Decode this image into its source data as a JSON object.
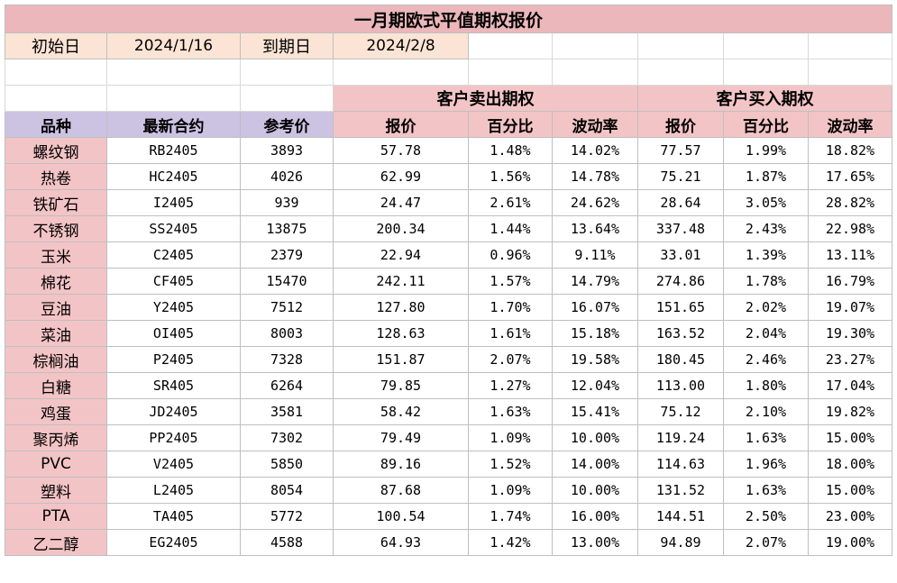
{
  "title": "一月期欧式平值期权报价",
  "info": {
    "start_label": "初始日",
    "start_value": "2024/1/16",
    "expiry_label": "到期日",
    "expiry_value": "2024/2/8"
  },
  "groups": {
    "sell": "客户卖出期权",
    "buy": "客户买入期权"
  },
  "columns": [
    "品种",
    "最新合约",
    "参考价",
    "报价",
    "百分比",
    "波动率",
    "报价",
    "百分比",
    "波动率"
  ],
  "rows": [
    [
      "螺纹钢",
      "RB2405",
      "3893",
      "57.78",
      "1.48%",
      "14.02%",
      "77.57",
      "1.99%",
      "18.82%"
    ],
    [
      "热卷",
      "HC2405",
      "4026",
      "62.99",
      "1.56%",
      "14.78%",
      "75.21",
      "1.87%",
      "17.65%"
    ],
    [
      "铁矿石",
      "I2405",
      "939",
      "24.47",
      "2.61%",
      "24.62%",
      "28.64",
      "3.05%",
      "28.82%"
    ],
    [
      "不锈钢",
      "SS2405",
      "13875",
      "200.34",
      "1.44%",
      "13.64%",
      "337.48",
      "2.43%",
      "22.98%"
    ],
    [
      "玉米",
      "C2405",
      "2379",
      "22.94",
      "0.96%",
      "9.11%",
      "33.01",
      "1.39%",
      "13.11%"
    ],
    [
      "棉花",
      "CF405",
      "15470",
      "242.11",
      "1.57%",
      "14.79%",
      "274.86",
      "1.78%",
      "16.79%"
    ],
    [
      "豆油",
      "Y2405",
      "7512",
      "127.80",
      "1.70%",
      "16.07%",
      "151.65",
      "2.02%",
      "19.07%"
    ],
    [
      "菜油",
      "OI405",
      "8003",
      "128.63",
      "1.61%",
      "15.18%",
      "163.52",
      "2.04%",
      "19.30%"
    ],
    [
      "棕榈油",
      "P2405",
      "7328",
      "151.87",
      "2.07%",
      "19.58%",
      "180.45",
      "2.46%",
      "23.27%"
    ],
    [
      "白糖",
      "SR405",
      "6264",
      "79.85",
      "1.27%",
      "12.04%",
      "113.00",
      "1.80%",
      "17.04%"
    ],
    [
      "鸡蛋",
      "JD2405",
      "3581",
      "58.42",
      "1.63%",
      "15.41%",
      "75.12",
      "2.10%",
      "19.82%"
    ],
    [
      "聚丙烯",
      "PP2405",
      "7302",
      "79.49",
      "1.09%",
      "10.00%",
      "119.24",
      "1.63%",
      "15.00%"
    ],
    [
      "PVC",
      "V2405",
      "5850",
      "89.16",
      "1.52%",
      "14.00%",
      "114.63",
      "1.96%",
      "18.00%"
    ],
    [
      "塑料",
      "L2405",
      "8054",
      "87.68",
      "1.09%",
      "10.00%",
      "131.52",
      "1.63%",
      "15.00%"
    ],
    [
      "PTA",
      "TA405",
      "5772",
      "100.54",
      "1.74%",
      "16.00%",
      "144.51",
      "2.50%",
      "23.00%"
    ],
    [
      "乙二醇",
      "EG2405",
      "4588",
      "64.93",
      "1.42%",
      "13.00%",
      "94.89",
      "2.07%",
      "19.00%"
    ]
  ]
}
